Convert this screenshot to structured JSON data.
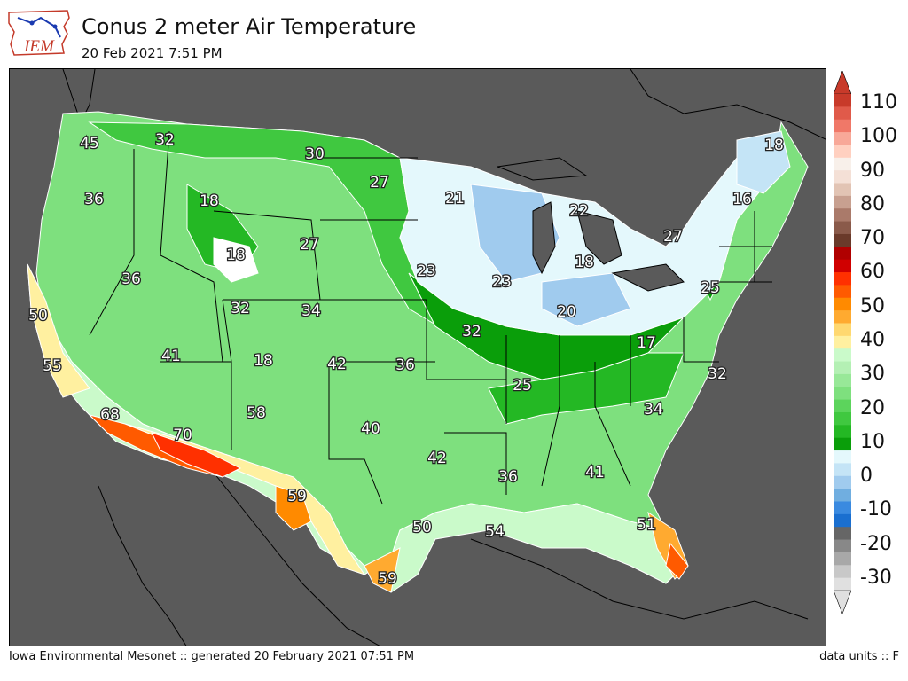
{
  "header": {
    "title": "Conus 2 meter Air Temperature",
    "subtitle": "20 Feb 2021 7:51 PM",
    "logo_text": "IEM"
  },
  "footer": {
    "left": "Iowa Environmental Mesonet :: generated 20 February 2021 07:51 PM",
    "right": "data units :: F"
  },
  "colorbar": {
    "labels": [
      "110",
      "100",
      "90",
      "80",
      "70",
      "60",
      "50",
      "40",
      "30",
      "20",
      "10",
      "0",
      "-10",
      "-20",
      "-30"
    ],
    "colors": [
      "#e0e0e0",
      "#c8c8c8",
      "#a8a8a8",
      "#888888",
      "#666666",
      "#1a6fd0",
      "#3a8ae0",
      "#70aee0",
      "#a0cbee",
      "#c4e4f6",
      "#e4f8fc",
      "#0a9e0a",
      "#24b824",
      "#40c840",
      "#5cd45c",
      "#7ee07e",
      "#98e898",
      "#b4f0b4",
      "#cafaca",
      "#fff0a0",
      "#ffd870",
      "#ffaa30",
      "#ff8a00",
      "#ff5a00",
      "#ff3000",
      "#d00000",
      "#b00000",
      "#6a3a2a",
      "#8a5a4a",
      "#aa7a6a",
      "#c8a090",
      "#e2c4b4",
      "#f4e0d6",
      "#f8f0ea",
      "#ffd0c0",
      "#f8a898",
      "#f07868",
      "#e05a4a",
      "#c83a2a"
    ]
  },
  "map": {
    "temperature_labels": [
      "45",
      "32",
      "30",
      "27",
      "21",
      "22",
      "18",
      "16",
      "18",
      "36",
      "18",
      "18",
      "27",
      "23",
      "23",
      "18",
      "27",
      "36",
      "32",
      "34",
      "20",
      "25",
      "50",
      "41",
      "18",
      "42",
      "36",
      "32",
      "17",
      "55",
      "68",
      "58",
      "40",
      "25",
      "34",
      "32",
      "70",
      "42",
      "36",
      "41",
      "59",
      "50",
      "54",
      "51",
      "59"
    ]
  }
}
